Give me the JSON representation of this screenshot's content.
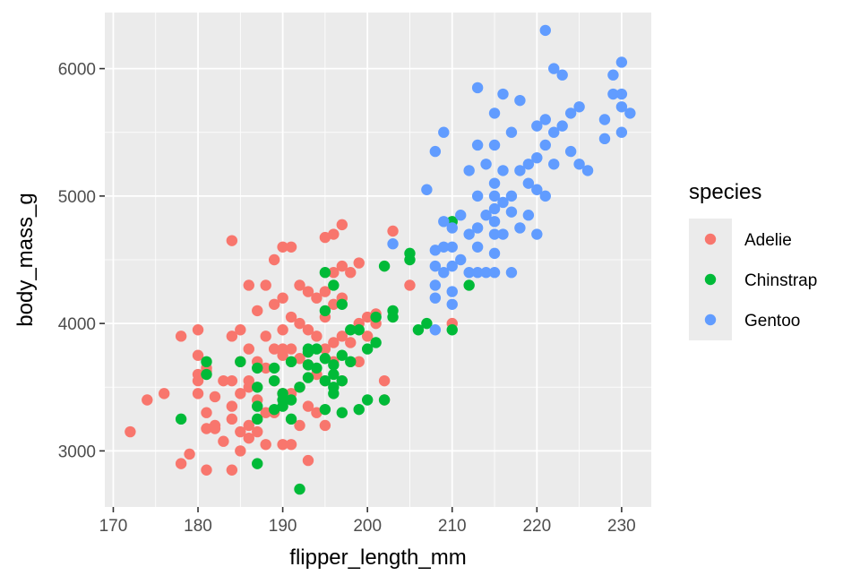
{
  "chart_data": {
    "type": "scatter",
    "title": "",
    "xlabel": "flipper_length_mm",
    "ylabel": "body_mass_g",
    "xlim": [
      169,
      233.5
    ],
    "ylim": [
      2560,
      6440
    ],
    "xticks": [
      170,
      180,
      190,
      200,
      210,
      220,
      230
    ],
    "yticks": [
      3000,
      4000,
      5000,
      6000
    ],
    "grid": true,
    "legend": {
      "title": "species",
      "placement": "right"
    },
    "series": [
      {
        "name": "Adelie",
        "color": "#F8766D",
        "points": [
          [
            172,
            3150
          ],
          [
            174,
            3400
          ],
          [
            176,
            3450
          ],
          [
            178,
            3900
          ],
          [
            178,
            2900
          ],
          [
            179,
            2975
          ],
          [
            180,
            3950
          ],
          [
            180,
            3750
          ],
          [
            180,
            3600
          ],
          [
            180,
            3450
          ],
          [
            180,
            3550
          ],
          [
            181,
            3650
          ],
          [
            181,
            3625
          ],
          [
            181,
            3300
          ],
          [
            181,
            3175
          ],
          [
            181,
            2850
          ],
          [
            182,
            3175
          ],
          [
            182,
            3425
          ],
          [
            182,
            3200
          ],
          [
            183,
            3075
          ],
          [
            183,
            3550
          ],
          [
            184,
            4650
          ],
          [
            184,
            3900
          ],
          [
            184,
            3350
          ],
          [
            184,
            3250
          ],
          [
            184,
            2850
          ],
          [
            184,
            3550
          ],
          [
            185,
            3950
          ],
          [
            185,
            3700
          ],
          [
            185,
            3450
          ],
          [
            185,
            3150
          ],
          [
            185,
            3000
          ],
          [
            186,
            4300
          ],
          [
            186,
            3800
          ],
          [
            186,
            3550
          ],
          [
            186,
            3200
          ],
          [
            186,
            3100
          ],
          [
            186,
            3500
          ],
          [
            187,
            4100
          ],
          [
            187,
            3700
          ],
          [
            187,
            3150
          ],
          [
            187,
            3400
          ],
          [
            188,
            4300
          ],
          [
            188,
            3900
          ],
          [
            188,
            3650
          ],
          [
            188,
            3300
          ],
          [
            188,
            3050
          ],
          [
            189,
            4500
          ],
          [
            189,
            4150
          ],
          [
            189,
            3800
          ],
          [
            189,
            3550
          ],
          [
            189,
            3300
          ],
          [
            190,
            4600
          ],
          [
            190,
            4200
          ],
          [
            190,
            3950
          ],
          [
            190,
            3750
          ],
          [
            190,
            3450
          ],
          [
            190,
            3050
          ],
          [
            190,
            3800
          ],
          [
            191,
            4600
          ],
          [
            191,
            4050
          ],
          [
            191,
            3800
          ],
          [
            191,
            3450
          ],
          [
            191,
            3050
          ],
          [
            192,
            4300
          ],
          [
            192,
            4000
          ],
          [
            192,
            3725
          ],
          [
            192,
            3500
          ],
          [
            192,
            3200
          ],
          [
            193,
            4250
          ],
          [
            193,
            3950
          ],
          [
            193,
            3675
          ],
          [
            193,
            3350
          ],
          [
            193,
            2925
          ],
          [
            194,
            4200
          ],
          [
            194,
            3900
          ],
          [
            194,
            3600
          ],
          [
            194,
            3300
          ],
          [
            195,
            4675
          ],
          [
            195,
            4250
          ],
          [
            195,
            4050
          ],
          [
            195,
            3800
          ],
          [
            195,
            3550
          ],
          [
            195,
            3200
          ],
          [
            196,
            4700
          ],
          [
            196,
            4400
          ],
          [
            196,
            4150
          ],
          [
            196,
            3850
          ],
          [
            196,
            3700
          ],
          [
            197,
            4775
          ],
          [
            197,
            4450
          ],
          [
            197,
            4200
          ],
          [
            197,
            3900
          ],
          [
            197,
            3550
          ],
          [
            198,
            4400
          ],
          [
            198,
            3850
          ],
          [
            199,
            4475
          ],
          [
            199,
            4000
          ],
          [
            199,
            3700
          ],
          [
            200,
            4050
          ],
          [
            200,
            3900
          ],
          [
            201,
            4075
          ],
          [
            201,
            4000
          ],
          [
            202,
            3550
          ],
          [
            202,
            3400
          ],
          [
            203,
            4725
          ],
          [
            205,
            4300
          ],
          [
            210,
            4000
          ]
        ]
      },
      {
        "name": "Chinstrap",
        "color": "#00BA38",
        "points": [
          [
            178,
            3250
          ],
          [
            181,
            3700
          ],
          [
            181,
            3600
          ],
          [
            185,
            3700
          ],
          [
            187,
            3650
          ],
          [
            187,
            3500
          ],
          [
            187,
            3350
          ],
          [
            187,
            3250
          ],
          [
            187,
            2900
          ],
          [
            189,
            3650
          ],
          [
            189,
            3550
          ],
          [
            189,
            3325
          ],
          [
            190,
            3450
          ],
          [
            190,
            3400
          ],
          [
            190,
            3350
          ],
          [
            191,
            3700
          ],
          [
            191,
            3400
          ],
          [
            191,
            3250
          ],
          [
            192,
            3500
          ],
          [
            192,
            2700
          ],
          [
            193,
            3800
          ],
          [
            193,
            3775
          ],
          [
            193,
            3675
          ],
          [
            193,
            3575
          ],
          [
            194,
            3800
          ],
          [
            194,
            3650
          ],
          [
            195,
            4400
          ],
          [
            195,
            4100
          ],
          [
            195,
            3725
          ],
          [
            195,
            3550
          ],
          [
            195,
            3325
          ],
          [
            196,
            4300
          ],
          [
            196,
            3675
          ],
          [
            196,
            3600
          ],
          [
            196,
            3500
          ],
          [
            196,
            3450
          ],
          [
            197,
            4150
          ],
          [
            197,
            3750
          ],
          [
            197,
            3550
          ],
          [
            197,
            3300
          ],
          [
            198,
            3950
          ],
          [
            198,
            3700
          ],
          [
            199,
            3950
          ],
          [
            199,
            3325
          ],
          [
            200,
            3800
          ],
          [
            200,
            3400
          ],
          [
            201,
            4050
          ],
          [
            201,
            3850
          ],
          [
            202,
            4450
          ],
          [
            202,
            3400
          ],
          [
            203,
            4100
          ],
          [
            203,
            4050
          ],
          [
            205,
            4550
          ],
          [
            205,
            4500
          ],
          [
            206,
            3950
          ],
          [
            207,
            4000
          ],
          [
            210,
            4800
          ],
          [
            210,
            3950
          ],
          [
            212,
            4300
          ]
        ]
      },
      {
        "name": "Gentoo",
        "color": "#619CFF",
        "points": [
          [
            203,
            4625
          ],
          [
            207,
            5050
          ],
          [
            208,
            5350
          ],
          [
            208,
            4575
          ],
          [
            208,
            4450
          ],
          [
            208,
            4300
          ],
          [
            208,
            4200
          ],
          [
            208,
            3950
          ],
          [
            209,
            5500
          ],
          [
            209,
            4800
          ],
          [
            209,
            4600
          ],
          [
            209,
            4400
          ],
          [
            210,
            4750
          ],
          [
            210,
            4600
          ],
          [
            210,
            4450
          ],
          [
            210,
            4250
          ],
          [
            210,
            4150
          ],
          [
            211,
            4850
          ],
          [
            211,
            4500
          ],
          [
            212,
            5200
          ],
          [
            212,
            4700
          ],
          [
            212,
            4400
          ],
          [
            213,
            5850
          ],
          [
            213,
            5400
          ],
          [
            213,
            5000
          ],
          [
            213,
            4750
          ],
          [
            213,
            4600
          ],
          [
            213,
            4400
          ],
          [
            214,
            5250
          ],
          [
            214,
            4850
          ],
          [
            214,
            4400
          ],
          [
            215,
            5650
          ],
          [
            215,
            5400
          ],
          [
            215,
            5100
          ],
          [
            215,
            5000
          ],
          [
            215,
            4900
          ],
          [
            215,
            4800
          ],
          [
            215,
            4700
          ],
          [
            215,
            4550
          ],
          [
            215,
            4400
          ],
          [
            216,
            5800
          ],
          [
            216,
            5200
          ],
          [
            216,
            4950
          ],
          [
            216,
            4700
          ],
          [
            217,
            5500
          ],
          [
            217,
            5000
          ],
          [
            217,
            4875
          ],
          [
            217,
            4400
          ],
          [
            218,
            5750
          ],
          [
            218,
            5200
          ],
          [
            218,
            4750
          ],
          [
            219,
            5250
          ],
          [
            219,
            5100
          ],
          [
            219,
            4850
          ],
          [
            220,
            5550
          ],
          [
            220,
            5300
          ],
          [
            220,
            5050
          ],
          [
            220,
            4700
          ],
          [
            221,
            6300
          ],
          [
            221,
            5600
          ],
          [
            221,
            5400
          ],
          [
            221,
            5000
          ],
          [
            222,
            6000
          ],
          [
            222,
            5500
          ],
          [
            222,
            5250
          ],
          [
            223,
            5950
          ],
          [
            223,
            5550
          ],
          [
            224,
            5650
          ],
          [
            224,
            5350
          ],
          [
            225,
            5700
          ],
          [
            225,
            5250
          ],
          [
            226,
            5200
          ],
          [
            228,
            5600
          ],
          [
            228,
            5450
          ],
          [
            229,
            5950
          ],
          [
            229,
            5800
          ],
          [
            230,
            6050
          ],
          [
            230,
            5800
          ],
          [
            230,
            5700
          ],
          [
            230,
            5500
          ],
          [
            231,
            5650
          ]
        ]
      }
    ]
  }
}
